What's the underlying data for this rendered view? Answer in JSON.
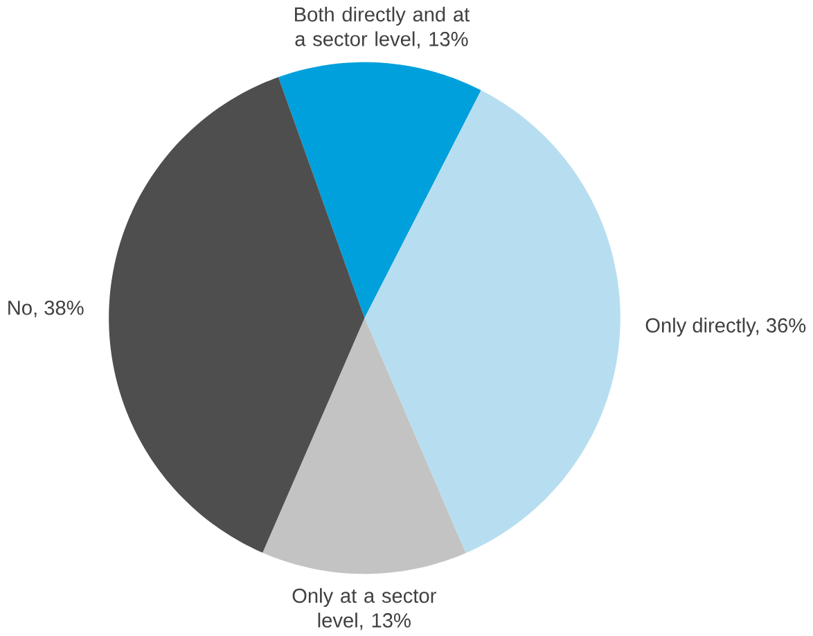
{
  "chart_data": {
    "type": "pie",
    "categories": [
      "Both directly and at a sector level, 13%",
      "Only directly, 36%",
      "Only at a sector level, 13%",
      "No, 38%"
    ],
    "values": [
      13,
      36,
      13,
      38
    ],
    "colors": [
      "#00a0dc",
      "#b7def0",
      "#c3c3c3",
      "#4e4e4e"
    ]
  }
}
